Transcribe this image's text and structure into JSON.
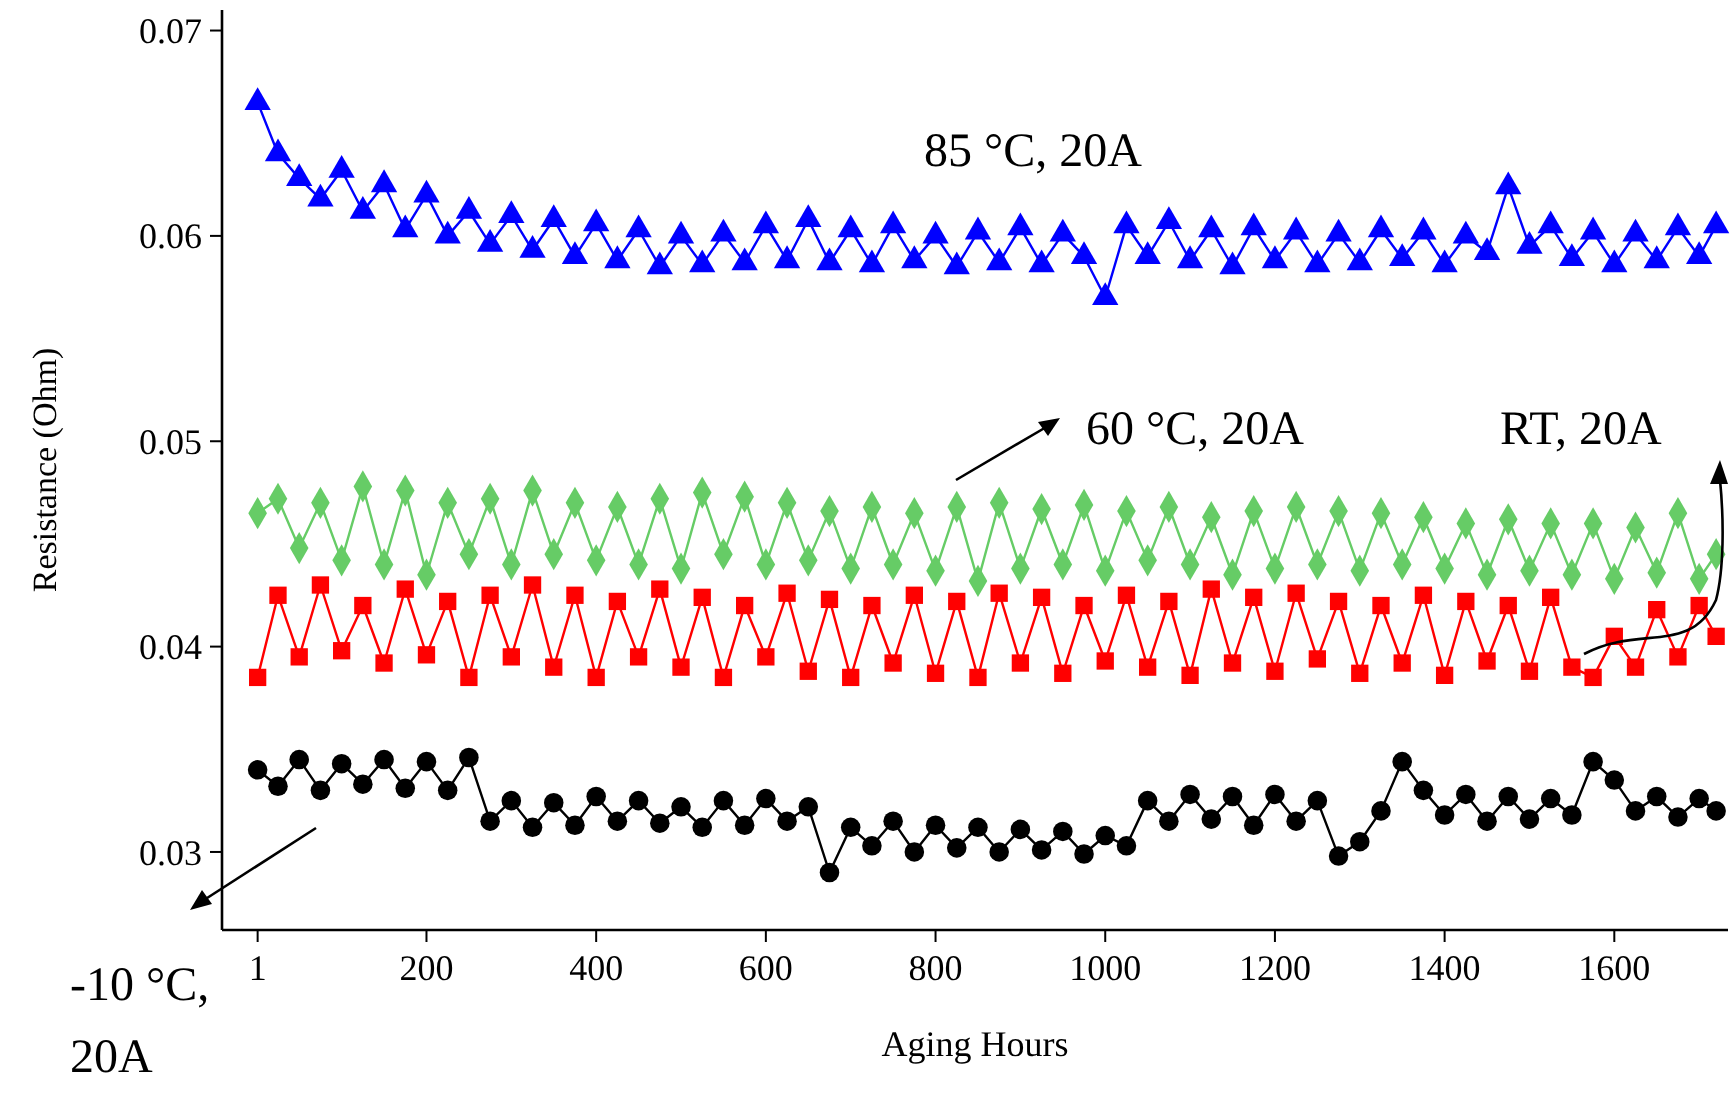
{
  "chart_data": {
    "type": "line",
    "xlabel": "Aging Hours",
    "ylabel": "Resistance (Ohm)",
    "xlim": [
      -41,
      1734
    ],
    "ylim": [
      0.0262,
      0.071
    ],
    "xticks": [
      1,
      200,
      400,
      600,
      800,
      1000,
      1200,
      1400,
      1600
    ],
    "yticks": [
      0.03,
      0.04,
      0.05,
      0.06,
      0.07
    ],
    "grid": false,
    "annotations": [
      "85 °C, 20A",
      "60 °C, 20A",
      "RT, 20A",
      "-10 °C, 20A"
    ],
    "x": [
      1,
      25,
      50,
      75,
      100,
      125,
      150,
      175,
      200,
      225,
      250,
      275,
      300,
      325,
      350,
      375,
      400,
      425,
      450,
      475,
      500,
      525,
      550,
      575,
      600,
      625,
      650,
      675,
      700,
      725,
      750,
      775,
      800,
      825,
      850,
      875,
      900,
      925,
      950,
      975,
      1000,
      1025,
      1050,
      1075,
      1100,
      1125,
      1150,
      1175,
      1200,
      1225,
      1250,
      1275,
      1300,
      1325,
      1350,
      1375,
      1400,
      1425,
      1450,
      1475,
      1500,
      1525,
      1550,
      1575,
      1600,
      1625,
      1650,
      1675,
      1700,
      1720
    ],
    "series": [
      {
        "color": "#0000ff",
        "marker": "triangle",
        "values": [
          0.0665,
          0.064,
          0.0628,
          0.0618,
          0.0632,
          0.0612,
          0.0625,
          0.0603,
          0.062,
          0.06,
          0.0612,
          0.0596,
          0.061,
          0.0593,
          0.0608,
          0.059,
          0.0606,
          0.0588,
          0.0603,
          0.0585,
          0.06,
          0.0586,
          0.0601,
          0.0587,
          0.0605,
          0.0588,
          0.0608,
          0.0587,
          0.0603,
          0.0586,
          0.0605,
          0.0588,
          0.06,
          0.0585,
          0.0602,
          0.0587,
          0.0604,
          0.0586,
          0.0601,
          0.059,
          0.057,
          0.0605,
          0.059,
          0.0607,
          0.0588,
          0.0603,
          0.0585,
          0.0604,
          0.0588,
          0.0602,
          0.0586,
          0.0601,
          0.0587,
          0.0603,
          0.0589,
          0.0602,
          0.0586,
          0.06,
          0.0592,
          0.0624,
          0.0595,
          0.0605,
          0.0589,
          0.0602,
          0.0586,
          0.0601,
          0.0588,
          0.0604,
          0.059,
          0.0605
        ]
      },
      {
        "color": "#66cc66",
        "marker": "diamond",
        "values": [
          0.0465,
          0.0472,
          0.0448,
          0.047,
          0.0442,
          0.0478,
          0.044,
          0.0476,
          0.0435,
          0.047,
          0.0445,
          0.0472,
          0.044,
          0.0476,
          0.0445,
          0.047,
          0.0442,
          0.0468,
          0.044,
          0.0472,
          0.0438,
          0.0475,
          0.0445,
          0.0473,
          0.044,
          0.047,
          0.0442,
          0.0466,
          0.0438,
          0.0468,
          0.044,
          0.0465,
          0.0437,
          0.0468,
          0.0432,
          0.047,
          0.0438,
          0.0467,
          0.044,
          0.0469,
          0.0437,
          0.0466,
          0.0442,
          0.0468,
          0.044,
          0.0463,
          0.0435,
          0.0466,
          0.0438,
          0.0468,
          0.044,
          0.0466,
          0.0437,
          0.0465,
          0.044,
          0.0463,
          0.0438,
          0.046,
          0.0435,
          0.0462,
          0.0437,
          0.046,
          0.0435,
          0.046,
          0.0433,
          0.0458,
          0.0436,
          0.0465,
          0.0433,
          0.0445
        ]
      },
      {
        "color": "#ff0000",
        "marker": "square",
        "values": [
          0.0385,
          0.0425,
          0.0395,
          0.043,
          0.0398,
          0.042,
          0.0392,
          0.0428,
          0.0396,
          0.0422,
          0.0385,
          0.0425,
          0.0395,
          0.043,
          0.039,
          0.0425,
          0.0385,
          0.0422,
          0.0395,
          0.0428,
          0.039,
          0.0424,
          0.0385,
          0.042,
          0.0395,
          0.0426,
          0.0388,
          0.0423,
          0.0385,
          0.042,
          0.0392,
          0.0425,
          0.0387,
          0.0422,
          0.0385,
          0.0426,
          0.0392,
          0.0424,
          0.0387,
          0.042,
          0.0393,
          0.0425,
          0.039,
          0.0422,
          0.0386,
          0.0428,
          0.0392,
          0.0424,
          0.0388,
          0.0426,
          0.0394,
          0.0422,
          0.0387,
          0.042,
          0.0392,
          0.0425,
          0.0386,
          0.0422,
          0.0393,
          0.042,
          0.0388,
          0.0424,
          0.039,
          0.0385,
          0.0405,
          0.039,
          0.0418,
          0.0395,
          0.042,
          0.0405
        ]
      },
      {
        "color": "#000000",
        "marker": "circle",
        "values": [
          0.034,
          0.0332,
          0.0345,
          0.033,
          0.0343,
          0.0333,
          0.0345,
          0.0331,
          0.0344,
          0.033,
          0.0346,
          0.0315,
          0.0325,
          0.0312,
          0.0324,
          0.0313,
          0.0327,
          0.0315,
          0.0325,
          0.0314,
          0.0322,
          0.0312,
          0.0325,
          0.0313,
          0.0326,
          0.0315,
          0.0322,
          0.029,
          0.0312,
          0.0303,
          0.0315,
          0.03,
          0.0313,
          0.0302,
          0.0312,
          0.03,
          0.0311,
          0.0301,
          0.031,
          0.0299,
          0.0308,
          0.0303,
          0.0325,
          0.0315,
          0.0328,
          0.0316,
          0.0327,
          0.0313,
          0.0328,
          0.0315,
          0.0325,
          0.0298,
          0.0305,
          0.032,
          0.0344,
          0.033,
          0.0318,
          0.0328,
          0.0315,
          0.0327,
          0.0316,
          0.0326,
          0.0318,
          0.0344,
          0.0335,
          0.032,
          0.0327,
          0.0317,
          0.0326,
          0.032
        ]
      }
    ]
  }
}
